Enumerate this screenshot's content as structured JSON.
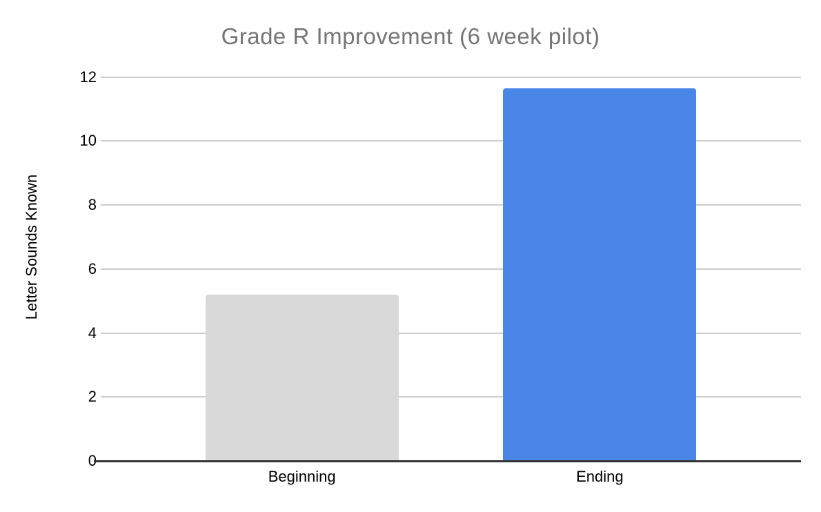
{
  "chart_data": {
    "type": "bar",
    "title": "Grade R Improvement (6 week pilot)",
    "categories": [
      "Beginning",
      "Ending"
    ],
    "values": [
      5.2,
      11.65
    ],
    "xlabel": "",
    "ylabel": "Letter Sounds Known",
    "ylim": [
      0,
      12
    ],
    "y_ticks": [
      0,
      2,
      4,
      6,
      8,
      10,
      12
    ],
    "grid": true,
    "legend": "none",
    "bar_colors": [
      "#d9d9d9",
      "#4a86e8"
    ],
    "colors": {
      "title_text": "#757575",
      "axis_text": "#000000",
      "gridline": "#cccccc",
      "baseline": "#333333",
      "background": "#ffffff"
    }
  }
}
